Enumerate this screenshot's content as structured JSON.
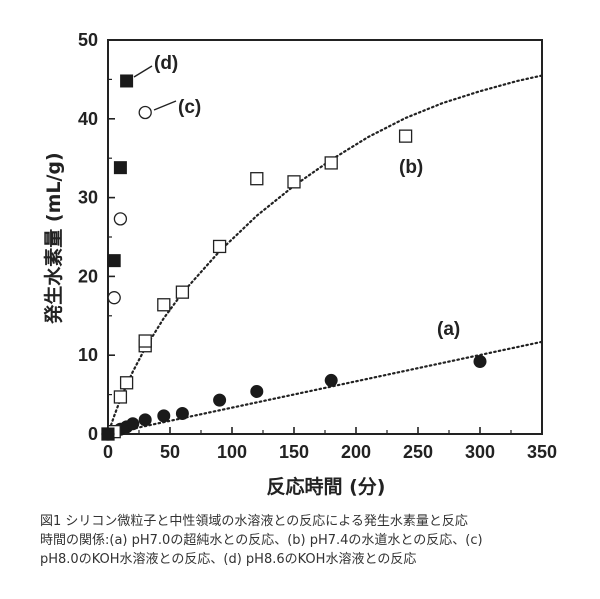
{
  "chart_data": {
    "type": "scatter",
    "xlabel": "反応時間 (分)",
    "ylabel": "発生水素量 (mL/g)",
    "xlim": [
      0,
      350
    ],
    "ylim": [
      0,
      50
    ],
    "xticks": [
      0,
      50,
      100,
      150,
      200,
      250,
      300,
      350
    ],
    "yticks": [
      0,
      10,
      20,
      30,
      40,
      50
    ],
    "grid": false,
    "series": [
      {
        "name": "(a)",
        "marker": "filled-circle",
        "x": [
          0,
          2,
          5,
          10,
          15,
          20,
          30,
          45,
          60,
          90,
          120,
          180,
          300
        ],
        "y": [
          0,
          0.1,
          0.3,
          0.6,
          0.9,
          1.3,
          1.8,
          2.3,
          2.6,
          4.3,
          5.4,
          6.8,
          9.2
        ],
        "trend": {
          "x": [
            0,
            350
          ],
          "y": [
            0,
            11.7
          ]
        }
      },
      {
        "name": "(b)",
        "marker": "open-square",
        "x": [
          0,
          5,
          10,
          15,
          30,
          30,
          45,
          60,
          90,
          120,
          150,
          180,
          240
        ],
        "y": [
          0,
          0.3,
          4.7,
          6.5,
          11.2,
          11.8,
          16.4,
          18.0,
          23.8,
          32.4,
          32.0,
          34.4,
          37.8
        ],
        "trend": {
          "x": [
            0,
            5,
            10,
            15,
            20,
            30,
            45,
            60,
            90,
            120,
            150,
            180,
            210,
            240,
            270,
            300,
            330,
            350
          ],
          "y": [
            0,
            2.3,
            4.4,
            6.2,
            7.9,
            10.9,
            14.7,
            17.9,
            23.2,
            27.7,
            31.5,
            34.8,
            37.7,
            40.1,
            42.0,
            43.5,
            44.8,
            45.5
          ]
        }
      },
      {
        "name": "(c)",
        "marker": "open-circle",
        "x": [
          0,
          5,
          10,
          30
        ],
        "y": [
          0,
          17.3,
          27.3,
          40.8
        ]
      },
      {
        "name": "(d)",
        "marker": "filled-square",
        "x": [
          0,
          5,
          10,
          15
        ],
        "y": [
          0,
          22.0,
          33.8,
          44.8
        ]
      }
    ]
  },
  "labels": {
    "a": "(a)",
    "b": "(b)",
    "c": "(c)",
    "d": "(d)"
  },
  "caption": {
    "line1": "図1 シリコン微粒子と中性領域の水溶液との反応による発生水素量と反応",
    "line2": "時間の関係:(a) pH7.0の超純水との反応、(b) pH7.4の水道水との反応、(c)",
    "line3": "pH8.0のKOH水溶液との反応、(d) pH8.6のKOH水溶液との反応"
  }
}
